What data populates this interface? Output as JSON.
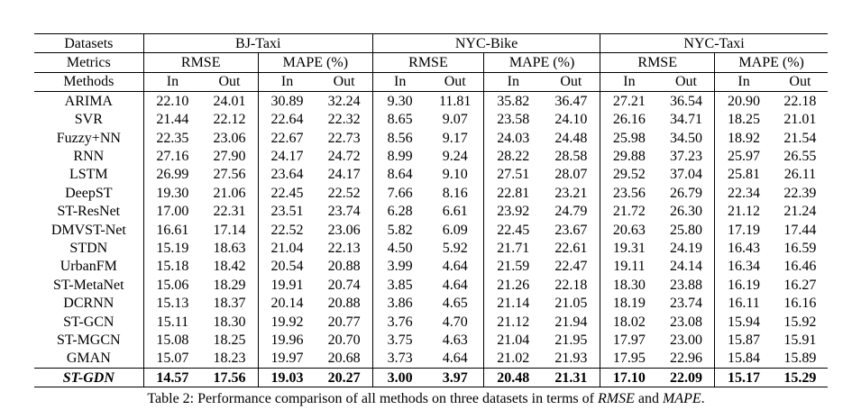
{
  "header": {
    "datasets_label": "Datasets",
    "metrics_label": "Metrics",
    "methods_label": "Methods",
    "datasets": [
      "BJ-Taxi",
      "NYC-Bike",
      "NYC-Taxi"
    ],
    "metrics": [
      "RMSE",
      "MAPE (%)"
    ],
    "subcols": [
      "In",
      "Out"
    ]
  },
  "rows": [
    {
      "method": "ARIMA",
      "values": [
        "22.10",
        "24.01",
        "30.89",
        "32.24",
        "9.30",
        "11.81",
        "35.82",
        "36.47",
        "27.21",
        "36.54",
        "20.90",
        "22.18"
      ]
    },
    {
      "method": "SVR",
      "values": [
        "21.44",
        "22.12",
        "22.64",
        "22.32",
        "8.65",
        "9.07",
        "23.58",
        "24.10",
        "26.16",
        "34.71",
        "18.25",
        "21.01"
      ]
    },
    {
      "method": "Fuzzy+NN",
      "values": [
        "22.35",
        "23.06",
        "22.67",
        "22.73",
        "8.56",
        "9.17",
        "24.03",
        "24.48",
        "25.98",
        "34.50",
        "18.92",
        "21.54"
      ]
    },
    {
      "method": "RNN",
      "values": [
        "27.16",
        "27.90",
        "24.17",
        "24.72",
        "8.99",
        "9.24",
        "28.22",
        "28.58",
        "29.88",
        "37.23",
        "25.97",
        "26.55"
      ]
    },
    {
      "method": "LSTM",
      "values": [
        "26.99",
        "27.56",
        "23.64",
        "24.17",
        "8.64",
        "9.10",
        "27.51",
        "28.07",
        "29.52",
        "37.04",
        "25.81",
        "26.11"
      ]
    },
    {
      "method": "DeepST",
      "values": [
        "19.30",
        "21.06",
        "22.45",
        "22.52",
        "7.66",
        "8.16",
        "22.81",
        "23.21",
        "23.56",
        "26.79",
        "22.34",
        "22.39"
      ]
    },
    {
      "method": "ST-ResNet",
      "values": [
        "17.00",
        "22.31",
        "23.51",
        "23.74",
        "6.28",
        "6.61",
        "23.92",
        "24.79",
        "21.72",
        "26.30",
        "21.12",
        "21.24"
      ]
    },
    {
      "method": "DMVST-Net",
      "values": [
        "16.61",
        "17.14",
        "22.52",
        "23.06",
        "5.82",
        "6.09",
        "22.45",
        "23.67",
        "20.63",
        "25.80",
        "17.19",
        "17.44"
      ]
    },
    {
      "method": "STDN",
      "values": [
        "15.19",
        "18.63",
        "21.04",
        "22.13",
        "4.50",
        "5.92",
        "21.71",
        "22.61",
        "19.31",
        "24.19",
        "16.43",
        "16.59"
      ]
    },
    {
      "method": "UrbanFM",
      "values": [
        "15.18",
        "18.42",
        "20.54",
        "20.88",
        "3.99",
        "4.64",
        "21.59",
        "22.47",
        "19.11",
        "24.14",
        "16.34",
        "16.46"
      ]
    },
    {
      "method": "ST-MetaNet",
      "values": [
        "15.06",
        "18.29",
        "19.91",
        "20.74",
        "3.85",
        "4.64",
        "21.26",
        "22.18",
        "18.30",
        "23.88",
        "16.19",
        "16.27"
      ]
    },
    {
      "method": "DCRNN",
      "values": [
        "15.13",
        "18.37",
        "20.14",
        "20.88",
        "3.86",
        "4.65",
        "21.14",
        "21.05",
        "18.19",
        "23.74",
        "16.11",
        "16.16"
      ]
    },
    {
      "method": "ST-GCN",
      "values": [
        "15.11",
        "18.30",
        "19.92",
        "20.77",
        "3.76",
        "4.70",
        "21.12",
        "21.94",
        "18.02",
        "23.08",
        "15.94",
        "15.92"
      ]
    },
    {
      "method": "ST-MGCN",
      "values": [
        "15.08",
        "18.25",
        "19.96",
        "20.70",
        "3.75",
        "4.63",
        "21.04",
        "21.95",
        "17.97",
        "23.00",
        "15.87",
        "15.91"
      ]
    },
    {
      "method": "GMAN",
      "values": [
        "15.07",
        "18.23",
        "19.97",
        "20.68",
        "3.73",
        "4.64",
        "21.02",
        "21.93",
        "17.95",
        "22.96",
        "15.84",
        "15.89"
      ]
    }
  ],
  "proposed": {
    "method": "ST-GDN",
    "values": [
      "14.57",
      "17.56",
      "19.03",
      "20.27",
      "3.00",
      "3.97",
      "20.48",
      "21.31",
      "17.10",
      "22.09",
      "15.17",
      "15.29"
    ]
  },
  "caption": {
    "prefix": "Table 2: Performance comparison of all methods on three datasets in terms of ",
    "metric1": "RMSE",
    "middle": " and ",
    "metric2": "MAPE",
    "suffix": "."
  }
}
